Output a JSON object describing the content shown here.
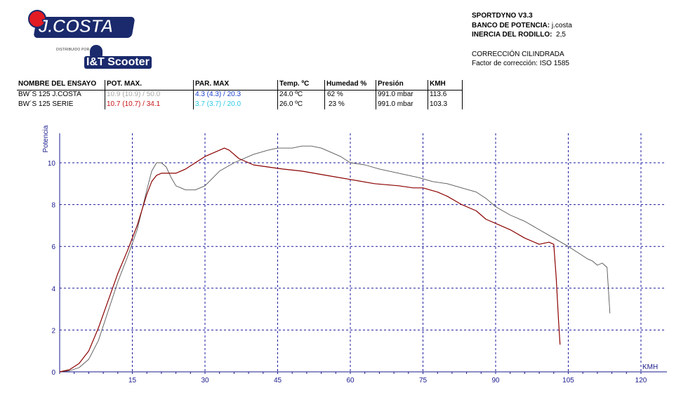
{
  "logo": {
    "brand": "J.COSTA",
    "distributor_label": "DISTRIBUIDO POR",
    "distributor": "I&T Scooter"
  },
  "info": {
    "software": "SPORTDYNO V3.3",
    "bench_label": "BANCO DE POTENCIA:",
    "bench_value": "j.costa",
    "inertia_label": "INERCIA DEL RODILLO:",
    "inertia_value": "2,5",
    "correction_title": "CORRECCIÓN CILINDRADA",
    "correction_factor": "Factor de corrección: ISO 1585"
  },
  "table": {
    "headers": [
      "NOMBRE DEL ENSAYO",
      "POT. MAX.",
      "PAR. MAX",
      "Temp. ºC",
      "Humedad %",
      "Presión",
      "KMH"
    ],
    "rows": [
      {
        "name": "BW´S 125 J.COSTA",
        "pot": "10.9 (10.9) / 50.0",
        "par": "4.3 (4.3) / 20.3",
        "temp": "24.0 ºC",
        "hum": "62 %",
        "pres": "991.0 mbar",
        "kmh": "113.6",
        "pot_color": "#a8a8a8",
        "par_color": "#1a3cc8"
      },
      {
        "name": "BW´S 125 SERIE",
        "pot": "10.7 (10.7) / 34.1",
        "par": "3.7 (3.7) / 20.0",
        "temp": "26.0 ºC",
        "hum": "23 %",
        "pres": "991.0 mbar",
        "kmh": "103.3",
        "pot_color": "#c81414",
        "par_color": "#28c8e6"
      }
    ]
  },
  "chart_data": {
    "type": "line",
    "ylabel": "Potencia",
    "xlabel": "KMH",
    "xlim": [
      0,
      120
    ],
    "ylim": [
      0,
      11
    ],
    "xticks": [
      15,
      30,
      45,
      60,
      75,
      90,
      105,
      120
    ],
    "yticks": [
      0,
      2,
      4,
      6,
      8,
      10
    ],
    "grid": true,
    "series": [
      {
        "name": "BW´S 125 J.COSTA",
        "color": "#555555",
        "x": [
          0,
          2,
          4,
          6,
          8,
          10,
          12,
          14,
          16,
          18,
          19,
          20,
          21,
          22,
          23,
          24,
          26,
          28,
          30,
          33,
          36,
          40,
          43,
          45,
          48,
          50,
          52,
          54,
          56,
          58,
          60,
          63,
          66,
          70,
          74,
          77,
          80,
          83,
          86,
          88,
          90,
          93,
          96,
          99,
          102,
          105,
          107,
          109,
          110,
          111,
          112,
          113,
          113.6
        ],
        "y": [
          0,
          0.05,
          0.2,
          0.6,
          1.5,
          2.9,
          4.3,
          5.5,
          6.8,
          8.7,
          9.6,
          10.0,
          10.0,
          9.8,
          9.3,
          8.9,
          8.7,
          8.7,
          8.9,
          9.6,
          10.0,
          10.4,
          10.6,
          10.7,
          10.7,
          10.8,
          10.8,
          10.7,
          10.5,
          10.3,
          10.0,
          9.9,
          9.7,
          9.5,
          9.3,
          9.1,
          9.0,
          8.8,
          8.6,
          8.3,
          7.9,
          7.5,
          7.2,
          6.8,
          6.4,
          6.0,
          5.7,
          5.4,
          5.3,
          5.1,
          5.2,
          5.0,
          2.8
        ]
      },
      {
        "name": "BW´S 125 SERIE",
        "color": "#8b0000",
        "x": [
          0,
          2,
          4,
          6,
          8,
          10,
          12,
          14,
          16,
          18,
          19,
          20,
          21,
          22,
          24,
          26,
          28,
          30,
          32,
          34,
          35,
          37,
          40,
          43,
          46,
          50,
          55,
          60,
          65,
          70,
          73,
          75,
          78,
          80,
          83,
          86,
          88,
          90,
          93,
          96,
          99,
          101,
          102,
          102.5,
          103,
          103.3
        ],
        "y": [
          0,
          0.1,
          0.4,
          1.0,
          2.1,
          3.4,
          4.7,
          5.8,
          7.0,
          8.5,
          9.1,
          9.4,
          9.5,
          9.5,
          9.5,
          9.7,
          10.0,
          10.3,
          10.5,
          10.7,
          10.6,
          10.2,
          9.9,
          9.8,
          9.7,
          9.6,
          9.4,
          9.2,
          9.0,
          8.9,
          8.8,
          8.8,
          8.6,
          8.4,
          8.0,
          7.7,
          7.3,
          7.1,
          6.8,
          6.4,
          6.1,
          6.2,
          6.1,
          4.5,
          2.4,
          1.3
        ]
      }
    ]
  }
}
